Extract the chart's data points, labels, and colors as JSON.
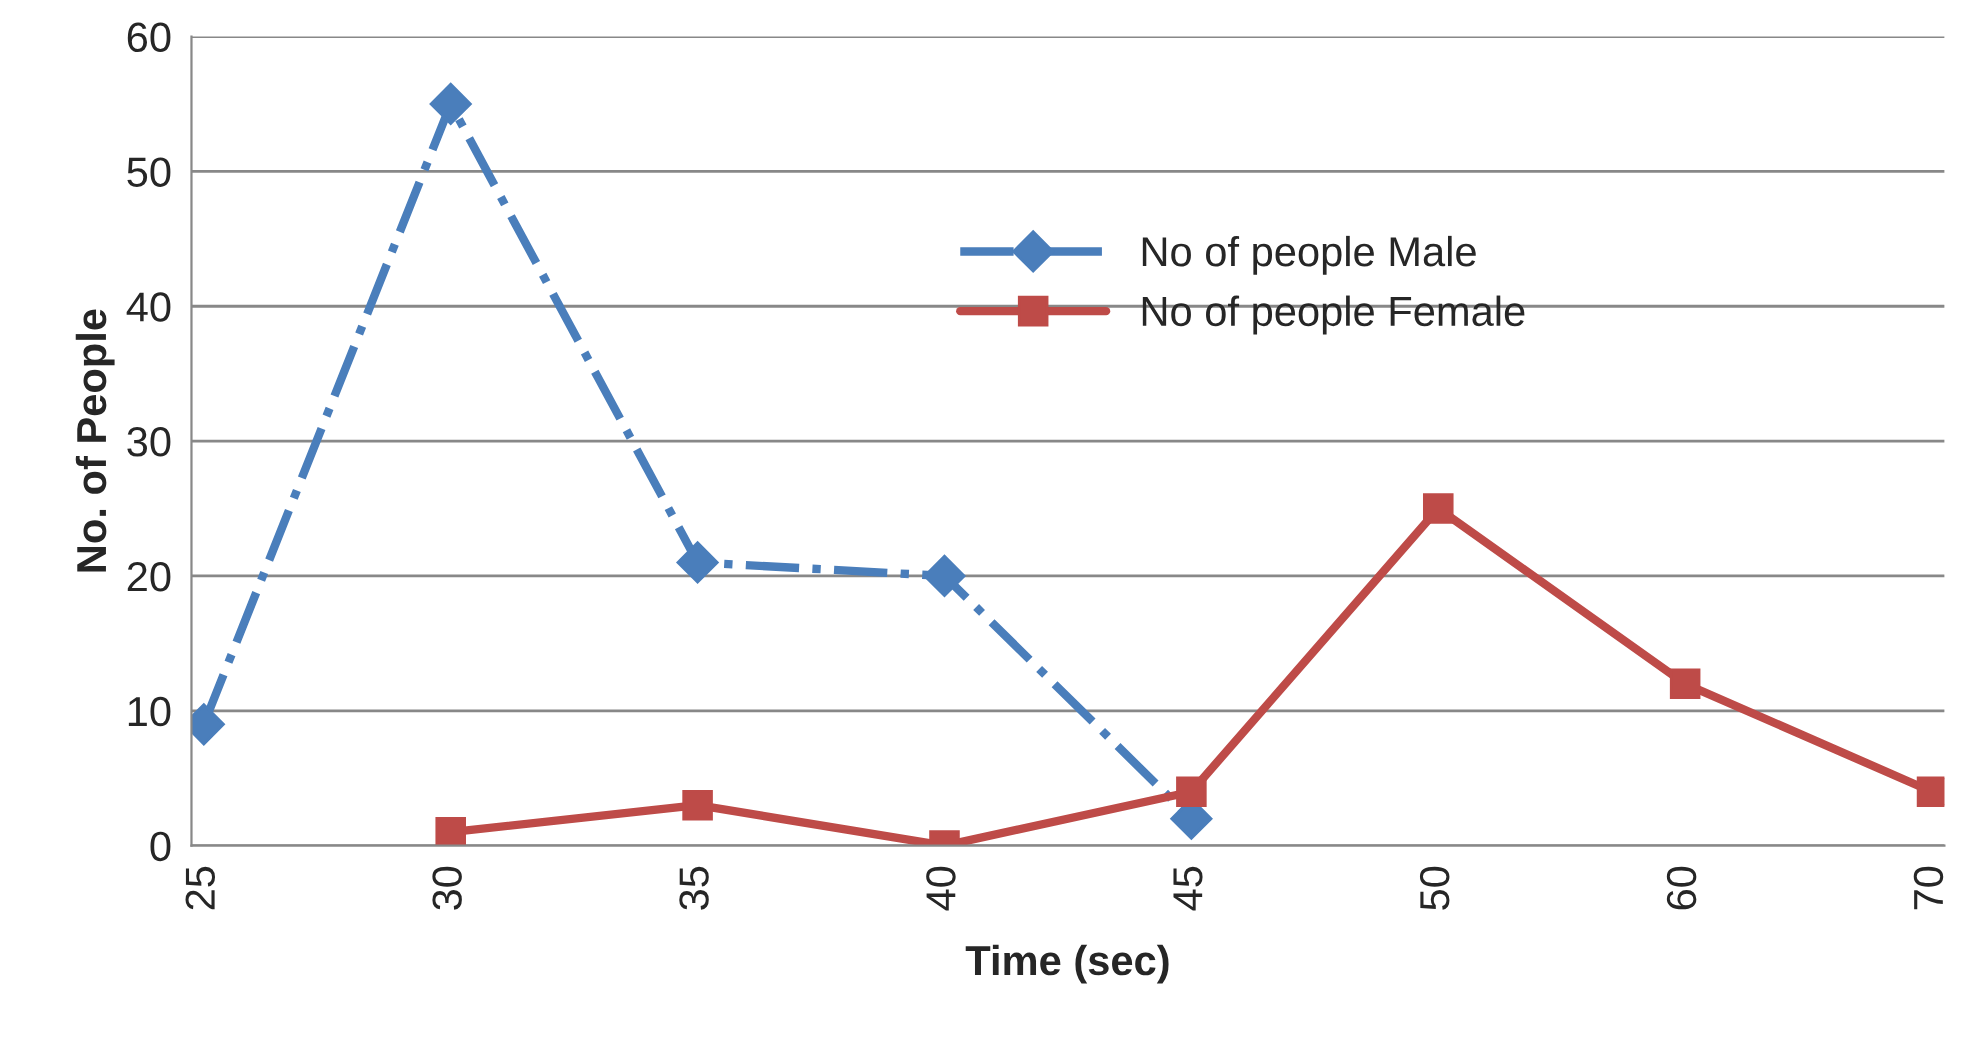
{
  "chart_data": {
    "type": "line",
    "xlabel": "Time (sec)",
    "ylabel": "No. of People",
    "categories": [
      "25",
      "30",
      "35",
      "40",
      "45",
      "50",
      "60",
      "70"
    ],
    "series": [
      {
        "name": "No of people Male",
        "color": "#4a7ebb",
        "values": [
          9,
          55,
          21,
          20,
          2,
          null,
          null,
          null
        ],
        "marker": "diamond",
        "line_style": "dashdot"
      },
      {
        "name": "No of people Female",
        "color": "#be4b48",
        "values": [
          null,
          1,
          3,
          0,
          4,
          25,
          12,
          4
        ],
        "marker": "square",
        "line_style": "solid"
      }
    ],
    "ylim": [
      0,
      60
    ],
    "yticks": [
      0,
      10,
      20,
      30,
      40,
      50,
      60
    ],
    "grid": "y",
    "legend": "top"
  }
}
